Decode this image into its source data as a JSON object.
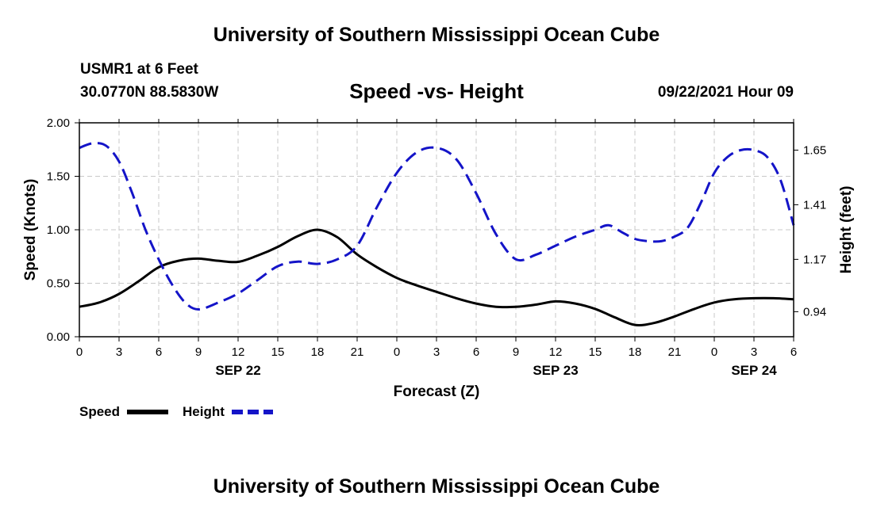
{
  "header": {
    "title": "University of Southern Mississippi Ocean Cube",
    "station": "USMR1 at 6 Feet",
    "coords": "30.0770N  88.5830W",
    "subtitle": "Speed -vs- Height",
    "datetime": "09/22/2021 Hour 09"
  },
  "footer": {
    "title": "University of Southern Mississippi Ocean Cube"
  },
  "colors": {
    "speed": "#000000",
    "height": "#1414c8",
    "grid": "#c8c8c8"
  },
  "chart_data": {
    "type": "line",
    "title": "Speed -vs- Height",
    "xlabel": "Forecast (Z)",
    "ylabel": "Speed (Knots)",
    "y2label": "Height (feet)",
    "xlim": [
      0,
      54
    ],
    "ylim": [
      0,
      2.0
    ],
    "y2lim": [
      0.83,
      1.77
    ],
    "grid": true,
    "legend_position": "bottom-left",
    "x_ticks": [
      {
        "x": 0,
        "label": "0"
      },
      {
        "x": 3,
        "label": "3"
      },
      {
        "x": 6,
        "label": "6"
      },
      {
        "x": 9,
        "label": "9"
      },
      {
        "x": 12,
        "label": "12"
      },
      {
        "x": 15,
        "label": "15"
      },
      {
        "x": 18,
        "label": "18"
      },
      {
        "x": 21,
        "label": "21"
      },
      {
        "x": 24,
        "label": "0"
      },
      {
        "x": 27,
        "label": "3"
      },
      {
        "x": 30,
        "label": "6"
      },
      {
        "x": 33,
        "label": "9"
      },
      {
        "x": 36,
        "label": "12"
      },
      {
        "x": 39,
        "label": "15"
      },
      {
        "x": 42,
        "label": "18"
      },
      {
        "x": 45,
        "label": "21"
      },
      {
        "x": 48,
        "label": "0"
      },
      {
        "x": 51,
        "label": "3"
      },
      {
        "x": 54,
        "label": "6"
      }
    ],
    "date_labels": [
      {
        "x": 12,
        "label": "SEP 22"
      },
      {
        "x": 36,
        "label": "SEP 23"
      },
      {
        "x": 51,
        "label": "SEP 24"
      }
    ],
    "y_ticks": [
      {
        "v": 0.0,
        "label": "0.00"
      },
      {
        "v": 0.5,
        "label": "0.50"
      },
      {
        "v": 1.0,
        "label": "1.00"
      },
      {
        "v": 1.5,
        "label": "1.50"
      },
      {
        "v": 2.0,
        "label": "2.00"
      }
    ],
    "y2_ticks": [
      {
        "v": 0.94,
        "label": "0.94"
      },
      {
        "v": 1.17,
        "label": "1.17"
      },
      {
        "v": 1.41,
        "label": "1.41"
      },
      {
        "v": 1.65,
        "label": "1.65"
      }
    ],
    "series": [
      {
        "name": "Speed",
        "axis": "left",
        "style": "solid",
        "x": [
          0,
          1.5,
          3,
          4.5,
          6,
          7.5,
          9,
          10.5,
          12,
          13.5,
          15,
          16.5,
          18,
          19.5,
          21,
          22.5,
          24,
          25.5,
          27,
          28.5,
          30,
          31.5,
          33,
          34.5,
          36,
          37.5,
          39,
          40.5,
          42,
          43.5,
          45,
          46.5,
          48,
          49.5,
          51,
          52.5,
          54
        ],
        "values": [
          0.28,
          0.32,
          0.4,
          0.52,
          0.65,
          0.71,
          0.73,
          0.71,
          0.7,
          0.76,
          0.84,
          0.94,
          1.0,
          0.93,
          0.77,
          0.65,
          0.55,
          0.48,
          0.42,
          0.36,
          0.31,
          0.28,
          0.28,
          0.3,
          0.33,
          0.31,
          0.26,
          0.18,
          0.11,
          0.13,
          0.19,
          0.26,
          0.32,
          0.35,
          0.36,
          0.36,
          0.35
        ]
      },
      {
        "name": "Height",
        "axis": "right",
        "style": "dashed",
        "x": [
          0,
          1,
          2,
          3,
          4,
          5,
          6,
          7,
          8,
          9,
          10.5,
          12,
          13.5,
          15,
          16.5,
          18,
          19.5,
          21,
          22.5,
          24,
          25.5,
          27,
          28.5,
          30,
          31.5,
          33,
          34.5,
          36,
          37.5,
          39,
          40,
          41,
          42,
          43,
          44,
          45,
          46,
          47,
          48,
          49,
          50,
          51,
          52,
          53,
          54
        ],
        "values": [
          1.66,
          1.68,
          1.67,
          1.6,
          1.46,
          1.3,
          1.17,
          1.06,
          0.98,
          0.95,
          0.98,
          1.02,
          1.08,
          1.14,
          1.16,
          1.15,
          1.17,
          1.23,
          1.4,
          1.55,
          1.64,
          1.66,
          1.61,
          1.46,
          1.28,
          1.17,
          1.19,
          1.23,
          1.27,
          1.3,
          1.32,
          1.29,
          1.26,
          1.25,
          1.25,
          1.27,
          1.31,
          1.42,
          1.55,
          1.62,
          1.65,
          1.65,
          1.62,
          1.52,
          1.32
        ]
      }
    ]
  }
}
